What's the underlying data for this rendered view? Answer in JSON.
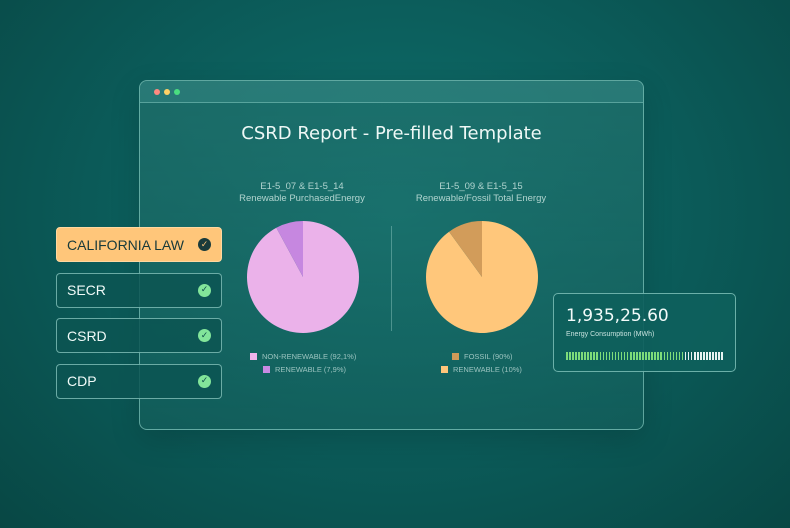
{
  "window": {
    "title": "CSRD Report - Pre-filled Template",
    "dots": [
      "#ff8a80",
      "#ffd166",
      "#4ade80"
    ]
  },
  "charts": [
    {
      "code": "E1-5_07 & E1-5_14",
      "subtitle": "Renewable PurchasedEnergy",
      "legend": [
        {
          "label": "NON-RENEWABLE (92,1%)",
          "color": "#f0b4ec"
        },
        {
          "label": "RENEWABLE (7,9%)",
          "color": "#c98ae3"
        }
      ]
    },
    {
      "code": "E1-5_09 & E1-5_15",
      "subtitle": "Renewable/Fossil Total Energy",
      "legend": [
        {
          "label": "FOSSIL (90%)",
          "color": "#cf9a58"
        },
        {
          "label": "RENEWABLE (10%)",
          "color": "#ffc57a"
        }
      ]
    }
  ],
  "chart_data": [
    {
      "type": "pie",
      "title": "E1-5_07 & E1-5_14",
      "subtitle": "Renewable PurchasedEnergy",
      "slices": [
        {
          "label": "NON-RENEWABLE",
          "value": 92.1,
          "color": "#ebb2ea"
        },
        {
          "label": "RENEWABLE",
          "value": 7.9,
          "color": "#c687e0"
        }
      ]
    },
    {
      "type": "pie",
      "title": "E1-5_09 & E1-5_15",
      "subtitle": "Renewable/Fossil Total Energy",
      "slices": [
        {
          "label": "FOSSIL",
          "value": 90,
          "color": "#ffc77b"
        },
        {
          "label": "RENEWABLE",
          "value": 10,
          "color": "#d29c5a"
        }
      ]
    }
  ],
  "tags": [
    {
      "label": "CALIFORNIA LAW",
      "active": true
    },
    {
      "label": "SECR",
      "active": false
    },
    {
      "label": "CSRD",
      "active": false
    },
    {
      "label": "CDP",
      "active": false
    }
  ],
  "metric": {
    "value": "1,935,25.60",
    "label": "Energy Consumption (MWh)",
    "fill_fraction": 0.75,
    "fill_color": "#7ddc7a",
    "empty_color": "#e6f4f2"
  }
}
